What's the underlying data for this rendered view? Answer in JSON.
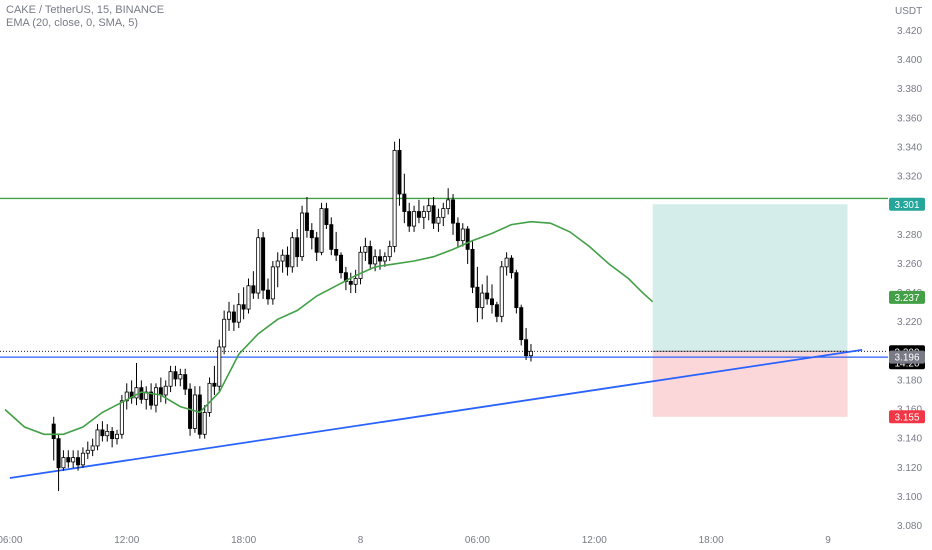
{
  "header": {
    "symbol_line": "CAKE / TetherUS, 15, BINANCE",
    "indicator_line": "EMA (20, close, 0, SMA, 5)"
  },
  "chart_data": {
    "type": "candlestick",
    "currency": "USDT",
    "y_ticks": [
      "3.420",
      "3.400",
      "3.380",
      "3.360",
      "3.340",
      "3.320",
      "3.300",
      "3.280",
      "3.260",
      "3.240",
      "3.220",
      "3.200",
      "3.180",
      "3.160",
      "3.140",
      "3.120",
      "3.100",
      "3.080"
    ],
    "ylim": [
      3.076,
      3.426
    ],
    "x_ticks": [
      {
        "label": "06:00",
        "i": 1
      },
      {
        "label": "12:00",
        "i": 25
      },
      {
        "label": "18:00",
        "i": 49
      },
      {
        "label": "8",
        "i": 73
      },
      {
        "label": "06:00",
        "i": 97
      },
      {
        "label": "12:00",
        "i": 121
      },
      {
        "label": "18:00",
        "i": 145
      },
      {
        "label": "9",
        "i": 169
      }
    ],
    "candles": [
      [
        3.15,
        3.155,
        3.125,
        3.14
      ],
      [
        3.14,
        3.143,
        3.104,
        3.12
      ],
      [
        3.12,
        3.132,
        3.118,
        3.127
      ],
      [
        3.127,
        3.132,
        3.12,
        3.124
      ],
      [
        3.124,
        3.132,
        3.12,
        3.127
      ],
      [
        3.127,
        3.132,
        3.118,
        3.122
      ],
      [
        3.122,
        3.134,
        3.12,
        3.13
      ],
      [
        3.13,
        3.138,
        3.126,
        3.132
      ],
      [
        3.132,
        3.14,
        3.128,
        3.135
      ],
      [
        3.135,
        3.15,
        3.132,
        3.146
      ],
      [
        3.146,
        3.152,
        3.138,
        3.142
      ],
      [
        3.142,
        3.15,
        3.138,
        3.145
      ],
      [
        3.145,
        3.148,
        3.134,
        3.14
      ],
      [
        3.14,
        3.146,
        3.136,
        3.143
      ],
      [
        3.143,
        3.17,
        3.14,
        3.166
      ],
      [
        3.166,
        3.178,
        3.16,
        3.172
      ],
      [
        3.172,
        3.18,
        3.164,
        3.168
      ],
      [
        3.168,
        3.192,
        3.163,
        3.175
      ],
      [
        3.175,
        3.18,
        3.164,
        3.167
      ],
      [
        3.167,
        3.176,
        3.16,
        3.172
      ],
      [
        3.172,
        3.178,
        3.16,
        3.163
      ],
      [
        3.163,
        3.178,
        3.158,
        3.175
      ],
      [
        3.175,
        3.182,
        3.165,
        3.17
      ],
      [
        3.17,
        3.18,
        3.164,
        3.176
      ],
      [
        3.176,
        3.19,
        3.172,
        3.186
      ],
      [
        3.186,
        3.19,
        3.176,
        3.181
      ],
      [
        3.181,
        3.188,
        3.176,
        3.184
      ],
      [
        3.184,
        3.188,
        3.17,
        3.174
      ],
      [
        3.174,
        3.178,
        3.142,
        3.147
      ],
      [
        3.147,
        3.176,
        3.144,
        3.17
      ],
      [
        3.17,
        3.176,
        3.14,
        3.143
      ],
      [
        3.143,
        3.163,
        3.14,
        3.158
      ],
      [
        3.158,
        3.182,
        3.155,
        3.178
      ],
      [
        3.178,
        3.19,
        3.17,
        3.176
      ],
      [
        3.176,
        3.208,
        3.172,
        3.203
      ],
      [
        3.203,
        3.228,
        3.198,
        3.222
      ],
      [
        3.222,
        3.234,
        3.214,
        3.227
      ],
      [
        3.227,
        3.232,
        3.214,
        3.22
      ],
      [
        3.22,
        3.24,
        3.216,
        3.232
      ],
      [
        3.232,
        3.244,
        3.222,
        3.229
      ],
      [
        3.229,
        3.25,
        3.226,
        3.245
      ],
      [
        3.245,
        3.255,
        3.236,
        3.24
      ],
      [
        3.24,
        3.284,
        3.236,
        3.278
      ],
      [
        3.278,
        3.282,
        3.236,
        3.242
      ],
      [
        3.242,
        3.25,
        3.232,
        3.236
      ],
      [
        3.236,
        3.262,
        3.232,
        3.258
      ],
      [
        3.258,
        3.268,
        3.244,
        3.262
      ],
      [
        3.262,
        3.27,
        3.254,
        3.266
      ],
      [
        3.266,
        3.272,
        3.252,
        3.258
      ],
      [
        3.258,
        3.282,
        3.254,
        3.278
      ],
      [
        3.278,
        3.284,
        3.258,
        3.265
      ],
      [
        3.265,
        3.3,
        3.262,
        3.295
      ],
      [
        3.295,
        3.306,
        3.278,
        3.283
      ],
      [
        3.283,
        3.288,
        3.27,
        3.278
      ],
      [
        3.278,
        3.282,
        3.262,
        3.268
      ],
      [
        3.268,
        3.302,
        3.266,
        3.298
      ],
      [
        3.298,
        3.302,
        3.284,
        3.287
      ],
      [
        3.287,
        3.292,
        3.266,
        3.27
      ],
      [
        3.27,
        3.282,
        3.262,
        3.266
      ],
      [
        3.266,
        3.268,
        3.25,
        3.254
      ],
      [
        3.254,
        3.258,
        3.242,
        3.248
      ],
      [
        3.248,
        3.254,
        3.24,
        3.246
      ],
      [
        3.246,
        3.256,
        3.24,
        3.25
      ],
      [
        3.25,
        3.272,
        3.246,
        3.268
      ],
      [
        3.268,
        3.278,
        3.262,
        3.272
      ],
      [
        3.272,
        3.276,
        3.256,
        3.26
      ],
      [
        3.26,
        3.27,
        3.255,
        3.265
      ],
      [
        3.265,
        3.27,
        3.256,
        3.262
      ],
      [
        3.262,
        3.268,
        3.258,
        3.265
      ],
      [
        3.265,
        3.276,
        3.262,
        3.272
      ],
      [
        3.272,
        3.344,
        3.268,
        3.338
      ],
      [
        3.338,
        3.346,
        3.3,
        3.308
      ],
      [
        3.308,
        3.322,
        3.288,
        3.296
      ],
      [
        3.296,
        3.302,
        3.282,
        3.286
      ],
      [
        3.286,
        3.3,
        3.282,
        3.296
      ],
      [
        3.296,
        3.304,
        3.288,
        3.292
      ],
      [
        3.292,
        3.3,
        3.284,
        3.296
      ],
      [
        3.296,
        3.305,
        3.29,
        3.3
      ],
      [
        3.3,
        3.306,
        3.284,
        3.288
      ],
      [
        3.288,
        3.298,
        3.282,
        3.292
      ],
      [
        3.292,
        3.302,
        3.286,
        3.298
      ],
      [
        3.298,
        3.312,
        3.294,
        3.304
      ],
      [
        3.304,
        3.308,
        3.28,
        3.288
      ],
      [
        3.288,
        3.292,
        3.272,
        3.276
      ],
      [
        3.276,
        3.288,
        3.272,
        3.284
      ],
      [
        3.284,
        3.286,
        3.26,
        3.27
      ],
      [
        3.27,
        3.276,
        3.24,
        3.244
      ],
      [
        3.244,
        3.258,
        3.22,
        3.23
      ],
      [
        3.23,
        3.246,
        3.222,
        3.24
      ],
      [
        3.24,
        3.252,
        3.232,
        3.236
      ],
      [
        3.236,
        3.246,
        3.226,
        3.232
      ],
      [
        3.232,
        3.234,
        3.22,
        3.224
      ],
      [
        3.224,
        3.262,
        3.22,
        3.258
      ],
      [
        3.258,
        3.268,
        3.252,
        3.264
      ],
      [
        3.264,
        3.266,
        3.25,
        3.254
      ],
      [
        3.254,
        3.256,
        3.226,
        3.23
      ],
      [
        3.23,
        3.232,
        3.204,
        3.208
      ],
      [
        3.208,
        3.216,
        3.194,
        3.197
      ],
      [
        3.197,
        3.205,
        3.193,
        3.2
      ]
    ],
    "candle_offset": 10,
    "series": [
      {
        "name": "EMA (20, close, 0, SMA, 5)",
        "color": "#43a047",
        "values": [
          [
            0,
            3.16
          ],
          [
            4,
            3.148
          ],
          [
            8,
            3.143
          ],
          [
            12,
            3.143
          ],
          [
            16,
            3.148
          ],
          [
            20,
            3.158
          ],
          [
            24,
            3.165
          ],
          [
            28,
            3.172
          ],
          [
            32,
            3.17
          ],
          [
            36,
            3.162
          ],
          [
            40,
            3.158
          ],
          [
            44,
            3.172
          ],
          [
            48,
            3.198
          ],
          [
            52,
            3.212
          ],
          [
            56,
            3.222
          ],
          [
            60,
            3.228
          ],
          [
            64,
            3.238
          ],
          [
            68,
            3.245
          ],
          [
            72,
            3.252
          ],
          [
            76,
            3.258
          ],
          [
            80,
            3.26
          ],
          [
            84,
            3.262
          ],
          [
            88,
            3.265
          ],
          [
            92,
            3.27
          ],
          [
            96,
            3.276
          ],
          [
            100,
            3.281
          ],
          [
            104,
            3.287
          ],
          [
            108,
            3.289
          ],
          [
            112,
            3.288
          ],
          [
            116,
            3.282
          ],
          [
            120,
            3.272
          ],
          [
            124,
            3.26
          ],
          [
            128,
            3.25
          ],
          [
            131,
            3.24
          ],
          [
            133,
            3.234
          ]
        ]
      }
    ],
    "horizontal_lines": [
      {
        "price": 3.305,
        "color": "#43a047"
      },
      {
        "price": 3.196,
        "color": "#2962ff"
      }
    ],
    "current_price_line": {
      "price": 3.2,
      "color": "#000000"
    },
    "trendline": {
      "from": [
        1,
        3.113
      ],
      "to": [
        176,
        3.201
      ],
      "color": "#2962ff"
    },
    "position": {
      "start": 133,
      "end": 173,
      "take_profit": 3.301,
      "entry": 3.2,
      "stop": 3.155,
      "profit_color": "#26a69a",
      "loss_color": "#f23645"
    },
    "price_tags": [
      {
        "label": "3.301",
        "price": 3.301,
        "bg": "#26a69a"
      },
      {
        "label": "3.237",
        "price": 3.237,
        "bg": "#43a047"
      },
      {
        "label": "3.200",
        "sub": "14:20",
        "price": 3.2,
        "bg": "#000000"
      },
      {
        "label": "3.196",
        "price": 3.196,
        "bg": "#787b86"
      },
      {
        "label": "3.155",
        "price": 3.155,
        "bg": "#f23645"
      }
    ],
    "colors": {
      "up": "#ffffff",
      "down": "#000000",
      "outline": "#000000",
      "axis_text": "#787b86"
    }
  }
}
